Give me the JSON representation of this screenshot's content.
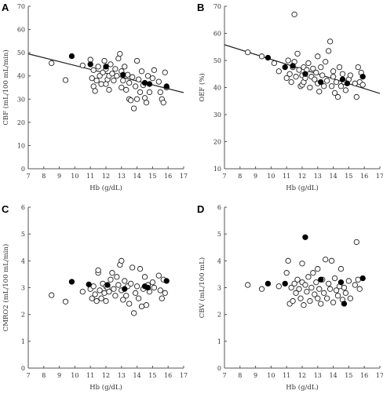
{
  "colors": {
    "open_marker_stroke": "#222222",
    "filled_marker": "#000000",
    "axes": "#555555"
  },
  "chart_data": [
    {
      "panel_label": "A",
      "type": "scatter",
      "xlabel": "Hb (g/dL)",
      "ylabel": "CBF (mL/100 mL/min)",
      "xlim": [
        7,
        17
      ],
      "ylim": [
        0,
        70
      ],
      "xticks": [
        "7",
        "8",
        "9",
        "10",
        "11",
        "12",
        "13",
        "14",
        "15",
        "16",
        "17"
      ],
      "yticks": [
        "0",
        "10",
        "20",
        "30",
        "40",
        "50",
        "60",
        "70"
      ],
      "regression_line": {
        "x": [
          7,
          17
        ],
        "y": [
          49.5,
          32.8
        ]
      },
      "series": [
        {
          "marker": "open",
          "points": [
            [
              8.5,
              45.5
            ],
            [
              9.4,
              38.2
            ],
            [
              10.5,
              44.5
            ],
            [
              11.0,
              47.0
            ],
            [
              11.1,
              39.0
            ],
            [
              11.2,
              42.5
            ],
            [
              11.2,
              35.5
            ],
            [
              11.3,
              33.5
            ],
            [
              11.4,
              38.0
            ],
            [
              11.5,
              44.0
            ],
            [
              11.6,
              40.0
            ],
            [
              11.7,
              36.5
            ],
            [
              11.8,
              41.5
            ],
            [
              11.9,
              46.5
            ],
            [
              12.0,
              43.0
            ],
            [
              12.0,
              36.5
            ],
            [
              12.1,
              38.5
            ],
            [
              12.2,
              40.0
            ],
            [
              12.2,
              34.0
            ],
            [
              12.3,
              45.0
            ],
            [
              12.4,
              41.0
            ],
            [
              12.5,
              38.0
            ],
            [
              12.6,
              43.0
            ],
            [
              12.7,
              40.0
            ],
            [
              12.8,
              47.5
            ],
            [
              12.9,
              49.5
            ],
            [
              13.0,
              35.0
            ],
            [
              13.0,
              42.0
            ],
            [
              13.1,
              38.0
            ],
            [
              13.2,
              44.0
            ],
            [
              13.3,
              34.0
            ],
            [
              13.4,
              40.5
            ],
            [
              13.5,
              30.0
            ],
            [
              13.5,
              37.0
            ],
            [
              13.6,
              29.5
            ],
            [
              13.7,
              39.5
            ],
            [
              13.8,
              26.0
            ],
            [
              13.9,
              35.5
            ],
            [
              14.0,
              46.5
            ],
            [
              14.0,
              30.0
            ],
            [
              14.1,
              38.5
            ],
            [
              14.2,
              33.0
            ],
            [
              14.3,
              42.0
            ],
            [
              14.4,
              36.0
            ],
            [
              14.5,
              30.5
            ],
            [
              14.6,
              28.5
            ],
            [
              14.7,
              40.0
            ],
            [
              14.8,
              33.0
            ],
            [
              15.0,
              39.0
            ],
            [
              15.1,
              42.5
            ],
            [
              15.4,
              37.5
            ],
            [
              15.5,
              33.0
            ],
            [
              15.6,
              30.0
            ],
            [
              15.7,
              28.5
            ],
            [
              15.8,
              41.5
            ],
            [
              15.9,
              35.0
            ]
          ]
        },
        {
          "marker": "filled",
          "points": [
            [
              9.8,
              48.5
            ],
            [
              11.0,
              45.0
            ],
            [
              12.0,
              44.0
            ],
            [
              13.1,
              40.5
            ],
            [
              14.5,
              37.0
            ],
            [
              14.8,
              36.5
            ],
            [
              15.9,
              35.5
            ]
          ]
        }
      ]
    },
    {
      "panel_label": "B",
      "type": "scatter",
      "xlabel": "Hb (g/dL)",
      "ylabel": "OEF (%)",
      "xlim": [
        7,
        17
      ],
      "ylim": [
        10,
        70
      ],
      "xticks": [
        "7",
        "8",
        "9",
        "10",
        "11",
        "12",
        "13",
        "14",
        "15",
        "16",
        "17"
      ],
      "yticks": [
        "10",
        "20",
        "30",
        "40",
        "50",
        "60",
        "70"
      ],
      "regression_line": {
        "x": [
          7,
          17
        ],
        "y": [
          55.8,
          37.8
        ]
      },
      "series": [
        {
          "marker": "open",
          "points": [
            [
              8.5,
              53.0
            ],
            [
              9.4,
              51.5
            ],
            [
              10.2,
              49.0
            ],
            [
              10.5,
              46.0
            ],
            [
              11.0,
              43.5
            ],
            [
              11.1,
              50.0
            ],
            [
              11.2,
              45.0
            ],
            [
              11.3,
              42.0
            ],
            [
              11.4,
              47.5
            ],
            [
              11.5,
              49.5
            ],
            [
              11.5,
              67.0
            ],
            [
              11.6,
              44.0
            ],
            [
              11.7,
              52.5
            ],
            [
              11.8,
              46.5
            ],
            [
              11.9,
              40.5
            ],
            [
              12.0,
              41.0
            ],
            [
              12.0,
              44.5
            ],
            [
              12.1,
              42.0
            ],
            [
              12.1,
              47.5
            ],
            [
              12.2,
              43.5
            ],
            [
              12.3,
              46.5
            ],
            [
              12.4,
              49.0
            ],
            [
              12.5,
              40.0
            ],
            [
              12.6,
              44.0
            ],
            [
              12.7,
              47.0
            ],
            [
              12.8,
              43.0
            ],
            [
              12.9,
              45.5
            ],
            [
              13.0,
              41.5
            ],
            [
              13.0,
              51.5
            ],
            [
              13.1,
              38.5
            ],
            [
              13.2,
              47.5
            ],
            [
              13.3,
              44.5
            ],
            [
              13.4,
              40.5
            ],
            [
              13.5,
              49.5
            ],
            [
              13.6,
              42.5
            ],
            [
              13.7,
              53.5
            ],
            [
              13.8,
              57.0
            ],
            [
              13.9,
              40.5
            ],
            [
              14.0,
              46.0
            ],
            [
              14.0,
              44.0
            ],
            [
              14.1,
              38.0
            ],
            [
              14.2,
              42.0
            ],
            [
              14.3,
              36.5
            ],
            [
              14.4,
              47.5
            ],
            [
              14.5,
              40.5
            ],
            [
              14.6,
              45.0
            ],
            [
              14.7,
              42.0
            ],
            [
              14.8,
              39.0
            ],
            [
              15.0,
              43.0
            ],
            [
              15.1,
              44.5
            ],
            [
              15.4,
              41.5
            ],
            [
              15.5,
              36.5
            ],
            [
              15.6,
              47.5
            ],
            [
              15.7,
              42.0
            ],
            [
              15.8,
              45.5
            ],
            [
              15.9,
              41.0
            ]
          ]
        },
        {
          "marker": "filled",
          "points": [
            [
              9.8,
              51.0
            ],
            [
              10.9,
              47.5
            ],
            [
              11.4,
              48.0
            ],
            [
              12.2,
              45.0
            ],
            [
              13.2,
              42.0
            ],
            [
              14.6,
              43.0
            ],
            [
              14.9,
              41.5
            ],
            [
              15.9,
              44.0
            ]
          ]
        }
      ]
    },
    {
      "panel_label": "C",
      "type": "scatter",
      "xlabel": "Hb (g/dL)",
      "ylabel": "CMRO2 (mL/100 mL/min)",
      "xlim": [
        7,
        17
      ],
      "ylim": [
        0,
        6
      ],
      "xticks": [
        "7",
        "8",
        "9",
        "10",
        "11",
        "12",
        "13",
        "14",
        "15",
        "16",
        "17"
      ],
      "yticks": [
        "0",
        "1",
        "2",
        "3",
        "4",
        "5",
        "6"
      ],
      "series": [
        {
          "marker": "open",
          "points": [
            [
              8.5,
              2.72
            ],
            [
              9.4,
              2.48
            ],
            [
              10.5,
              2.85
            ],
            [
              11.0,
              2.95
            ],
            [
              11.1,
              2.6
            ],
            [
              11.2,
              3.05
            ],
            [
              11.3,
              2.75
            ],
            [
              11.4,
              2.5
            ],
            [
              11.5,
              3.55
            ],
            [
              11.5,
              3.65
            ],
            [
              11.6,
              2.9
            ],
            [
              11.7,
              2.6
            ],
            [
              11.8,
              3.15
            ],
            [
              11.9,
              2.8
            ],
            [
              12.0,
              3.05
            ],
            [
              12.0,
              2.5
            ],
            [
              12.1,
              3.0
            ],
            [
              12.2,
              2.85
            ],
            [
              12.3,
              3.3
            ],
            [
              12.4,
              3.55
            ],
            [
              12.5,
              2.95
            ],
            [
              12.6,
              2.7
            ],
            [
              12.7,
              3.4
            ],
            [
              12.8,
              3.1
            ],
            [
              12.9,
              3.85
            ],
            [
              13.0,
              4.0
            ],
            [
              13.0,
              2.9
            ],
            [
              13.1,
              2.55
            ],
            [
              13.2,
              3.25
            ],
            [
              13.3,
              2.7
            ],
            [
              13.4,
              3.05
            ],
            [
              13.5,
              2.4
            ],
            [
              13.6,
              3.15
            ],
            [
              13.7,
              3.75
            ],
            [
              13.8,
              2.05
            ],
            [
              13.9,
              2.8
            ],
            [
              14.0,
              3.05
            ],
            [
              14.1,
              2.6
            ],
            [
              14.2,
              3.7
            ],
            [
              14.3,
              2.3
            ],
            [
              14.4,
              2.95
            ],
            [
              14.5,
              3.4
            ],
            [
              14.6,
              2.35
            ],
            [
              14.7,
              3.1
            ],
            [
              14.8,
              2.85
            ],
            [
              15.0,
              3.2
            ],
            [
              15.1,
              3.0
            ],
            [
              15.4,
              3.45
            ],
            [
              15.5,
              2.9
            ],
            [
              15.6,
              2.6
            ],
            [
              15.7,
              3.3
            ],
            [
              15.8,
              2.8
            ]
          ]
        },
        {
          "marker": "filled",
          "points": [
            [
              9.8,
              3.22
            ],
            [
              10.9,
              3.12
            ],
            [
              12.1,
              3.1
            ],
            [
              13.2,
              2.95
            ],
            [
              14.5,
              3.05
            ],
            [
              14.7,
              3.0
            ],
            [
              15.9,
              3.25
            ]
          ]
        }
      ]
    },
    {
      "panel_label": "D",
      "type": "scatter",
      "xlabel": "Hb (g/dL)",
      "ylabel": "CBV (mL/100 mL)",
      "xlim": [
        7,
        17
      ],
      "ylim": [
        0,
        6
      ],
      "xticks": [
        "7",
        "8",
        "9",
        "10",
        "11",
        "12",
        "13",
        "14",
        "15",
        "16",
        "17"
      ],
      "yticks": [
        "0",
        "1",
        "2",
        "3",
        "4",
        "5",
        "6"
      ],
      "series": [
        {
          "marker": "open",
          "points": [
            [
              8.5,
              3.1
            ],
            [
              9.4,
              2.95
            ],
            [
              10.5,
              3.05
            ],
            [
              11.0,
              3.55
            ],
            [
              11.1,
              4.0
            ],
            [
              11.2,
              2.4
            ],
            [
              11.3,
              3.0
            ],
            [
              11.4,
              2.5
            ],
            [
              11.5,
              3.15
            ],
            [
              11.6,
              2.8
            ],
            [
              11.7,
              3.3
            ],
            [
              11.8,
              2.95
            ],
            [
              11.9,
              2.6
            ],
            [
              12.0,
              3.2
            ],
            [
              12.0,
              3.9
            ],
            [
              12.1,
              2.35
            ],
            [
              12.2,
              3.1
            ],
            [
              12.3,
              2.85
            ],
            [
              12.4,
              3.4
            ],
            [
              12.5,
              2.5
            ],
            [
              12.6,
              3.0
            ],
            [
              12.7,
              3.55
            ],
            [
              12.8,
              2.75
            ],
            [
              12.9,
              3.2
            ],
            [
              13.0,
              2.6
            ],
            [
              13.0,
              3.7
            ],
            [
              13.1,
              2.95
            ],
            [
              13.2,
              2.4
            ],
            [
              13.3,
              3.3
            ],
            [
              13.4,
              2.8
            ],
            [
              13.5,
              4.05
            ],
            [
              13.6,
              2.6
            ],
            [
              13.7,
              3.15
            ],
            [
              13.8,
              2.95
            ],
            [
              13.9,
              4.0
            ],
            [
              14.0,
              2.45
            ],
            [
              14.1,
              3.35
            ],
            [
              14.2,
              2.9
            ],
            [
              14.3,
              2.7
            ],
            [
              14.4,
              3.05
            ],
            [
              14.5,
              3.7
            ],
            [
              14.6,
              2.55
            ],
            [
              14.7,
              3.0
            ],
            [
              14.8,
              2.8
            ],
            [
              15.0,
              3.25
            ],
            [
              15.1,
              2.6
            ],
            [
              15.4,
              3.1
            ],
            [
              15.5,
              4.7
            ],
            [
              15.6,
              3.3
            ],
            [
              15.7,
              2.95
            ]
          ]
        },
        {
          "marker": "filled",
          "points": [
            [
              9.8,
              3.15
            ],
            [
              10.9,
              3.15
            ],
            [
              12.2,
              4.88
            ],
            [
              13.2,
              3.3
            ],
            [
              14.5,
              3.2
            ],
            [
              14.7,
              2.4
            ],
            [
              15.9,
              3.35
            ]
          ]
        }
      ]
    }
  ]
}
